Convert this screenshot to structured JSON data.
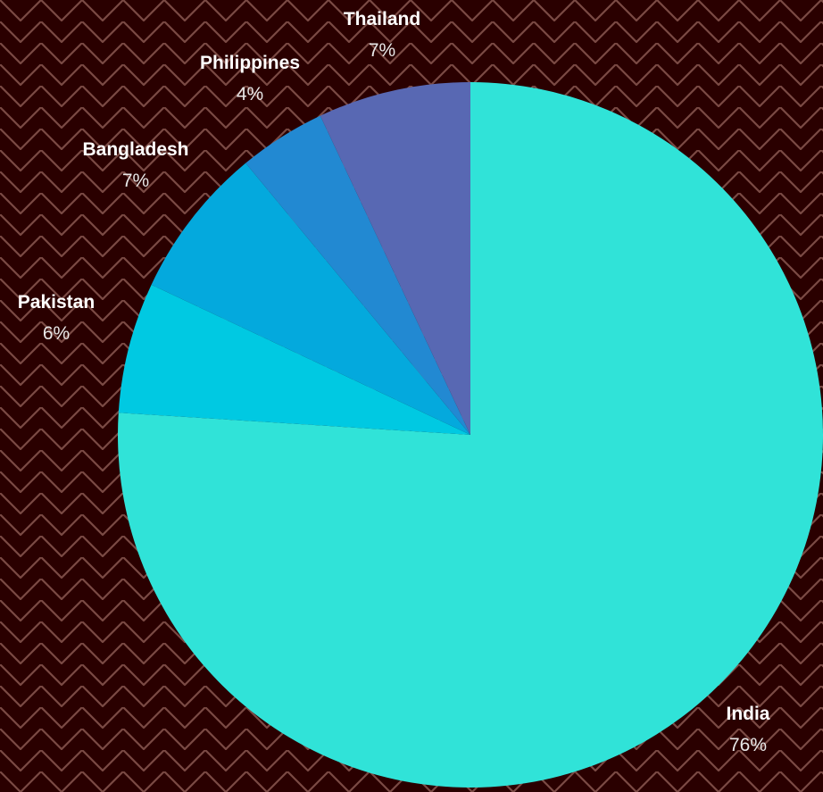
{
  "colors": {
    "background": "#2a0000",
    "pattern_stroke": "#7a4a44"
  },
  "chart_data": {
    "type": "pie",
    "title": "",
    "start": "top",
    "direction": "clockwise",
    "slices": [
      {
        "label": "India",
        "value": 76,
        "pct_text": "76%",
        "color": "#30e3d8"
      },
      {
        "label": "Pakistan",
        "value": 6,
        "pct_text": "6%",
        "color": "#00c9e2"
      },
      {
        "label": "Bangladesh",
        "value": 7,
        "pct_text": "7%",
        "color": "#04a9dd"
      },
      {
        "label": "Philippines",
        "value": 4,
        "pct_text": "4%",
        "color": "#2289d2"
      },
      {
        "label": "Thailand",
        "value": 7,
        "pct_text": "7%",
        "color": "#5868b3"
      }
    ]
  }
}
